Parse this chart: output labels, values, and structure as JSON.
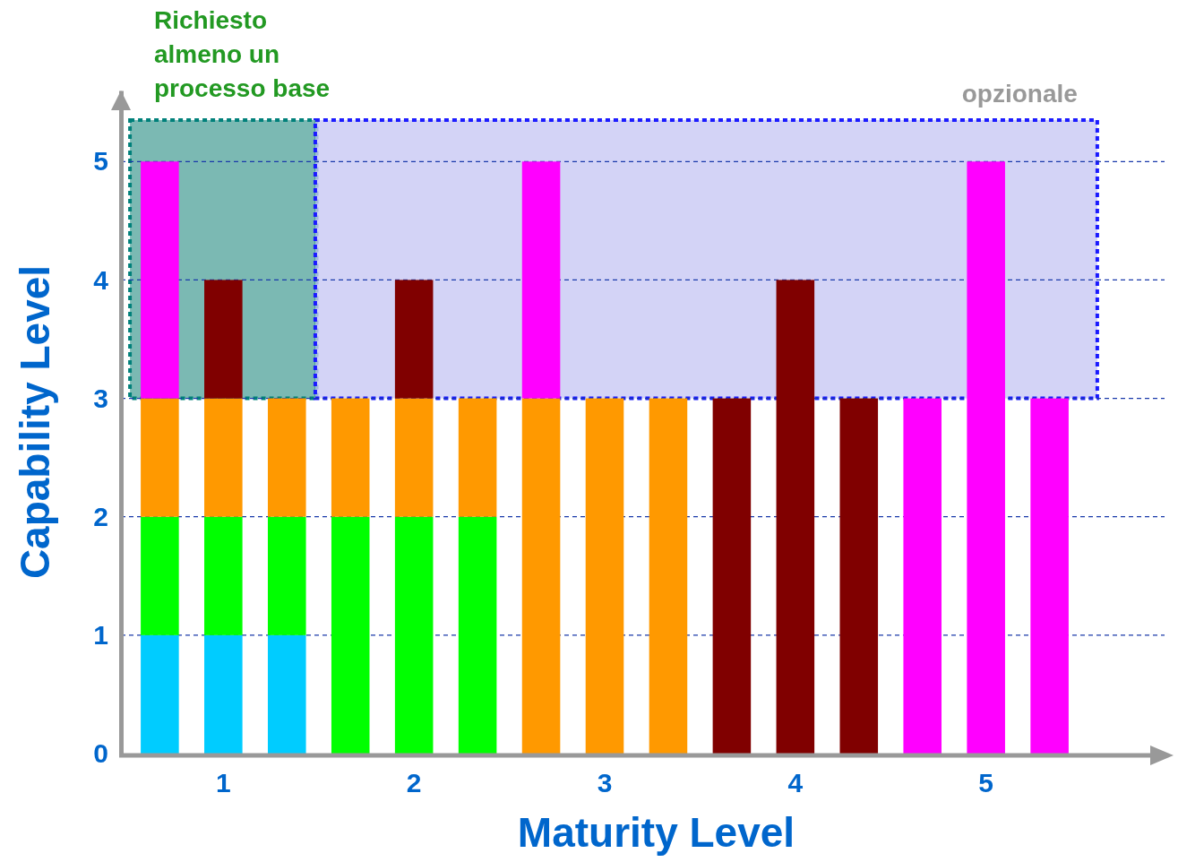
{
  "chart_data": {
    "type": "bar",
    "stacked": true,
    "xlabel": "Maturity Level",
    "ylabel": "Capability Level",
    "categories": [
      null,
      "1",
      null,
      null,
      "2",
      null,
      null,
      "3",
      null,
      null,
      "4",
      null,
      null,
      "5",
      null
    ],
    "series": [
      {
        "color": "#00ccff",
        "values": [
          1,
          1,
          1,
          null,
          null,
          null,
          null,
          null,
          null,
          null,
          null,
          null,
          null,
          null,
          null
        ]
      },
      {
        "color": "#00ff00",
        "values": [
          1,
          1,
          1,
          2,
          2,
          2,
          null,
          null,
          null,
          null,
          null,
          null,
          null,
          null,
          null
        ]
      },
      {
        "color": "#ff9900",
        "values": [
          1,
          1,
          1,
          1,
          1,
          1,
          3,
          3,
          3,
          null,
          null,
          null,
          null,
          null,
          null
        ]
      },
      {
        "color": "#800000",
        "values": [
          null,
          1,
          null,
          null,
          1,
          null,
          null,
          null,
          null,
          3,
          4,
          3,
          null,
          null,
          null
        ]
      },
      {
        "color": "#ff00ff",
        "values": [
          2,
          null,
          null,
          null,
          null,
          null,
          2,
          null,
          null,
          null,
          null,
          null,
          3,
          5,
          3
        ]
      }
    ],
    "ylim": [
      0,
      5.6
    ],
    "yticks": [
      0,
      1,
      2,
      3,
      4,
      5
    ],
    "grid": "y",
    "bands": [
      {
        "axis": "y",
        "from": 3,
        "to": 5.35,
        "color": "#5aa8a0",
        "label": "Richiesto almeno un processo base"
      },
      {
        "axis": "y",
        "from": 3,
        "to": 5.35,
        "color": "#c8c8f4",
        "label": "opzionale"
      }
    ]
  }
}
